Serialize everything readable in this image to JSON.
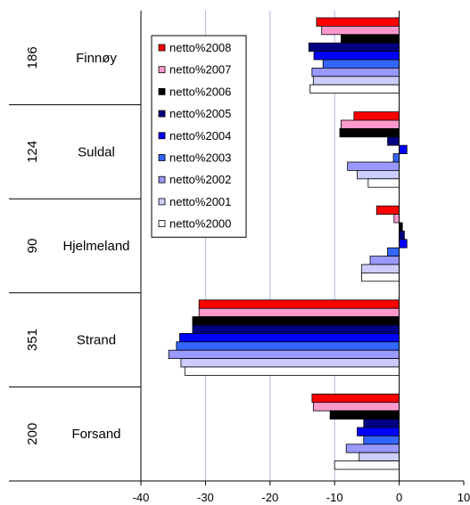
{
  "chart_data": {
    "type": "bar",
    "orientation": "horizontal",
    "categories": [
      "Finnøy",
      "Suldal",
      "Hjelmeland",
      "Strand",
      "Forsand"
    ],
    "category_codes": [
      "186",
      "124",
      "90",
      "351",
      "200"
    ],
    "series": [
      {
        "name": "netto%2008",
        "color": "#ff0000",
        "values": [
          -12.8,
          -7.0,
          -3.5,
          -31.0,
          -13.5
        ]
      },
      {
        "name": "netto%2007",
        "color": "#ff99cc",
        "values": [
          -12.0,
          -9.0,
          -0.8,
          -31.0,
          -13.3
        ]
      },
      {
        "name": "netto%2006",
        "color": "#000000",
        "values": [
          -9.0,
          -9.2,
          0.5,
          -32.0,
          -10.7
        ]
      },
      {
        "name": "netto%2005",
        "color": "#000080",
        "values": [
          -14.0,
          -1.8,
          0.8,
          -32.0,
          -5.5
        ]
      },
      {
        "name": "netto%2004",
        "color": "#0000ff",
        "values": [
          -13.2,
          1.2,
          1.2,
          -34.0,
          -6.5
        ]
      },
      {
        "name": "netto%2003",
        "color": "#3366ff",
        "values": [
          -11.8,
          -0.9,
          -1.8,
          -34.5,
          -5.5
        ]
      },
      {
        "name": "netto%2002",
        "color": "#9999ff",
        "values": [
          -13.5,
          -8.0,
          -4.5,
          -35.7,
          -8.2
        ]
      },
      {
        "name": "netto%2001",
        "color": "#ccccff",
        "values": [
          -13.3,
          -6.5,
          -5.8,
          -33.8,
          -6.2
        ]
      },
      {
        "name": "netto%2000",
        "color": "#ffffff",
        "values": [
          -13.8,
          -4.8,
          -5.8,
          -33.2,
          -10.0
        ]
      }
    ],
    "xlim": [
      -40,
      10
    ],
    "xticks": [
      "-40",
      "-30",
      "-20",
      "-10",
      "0",
      "10"
    ],
    "grid": "vertical",
    "legend": "top-left inside plot"
  }
}
